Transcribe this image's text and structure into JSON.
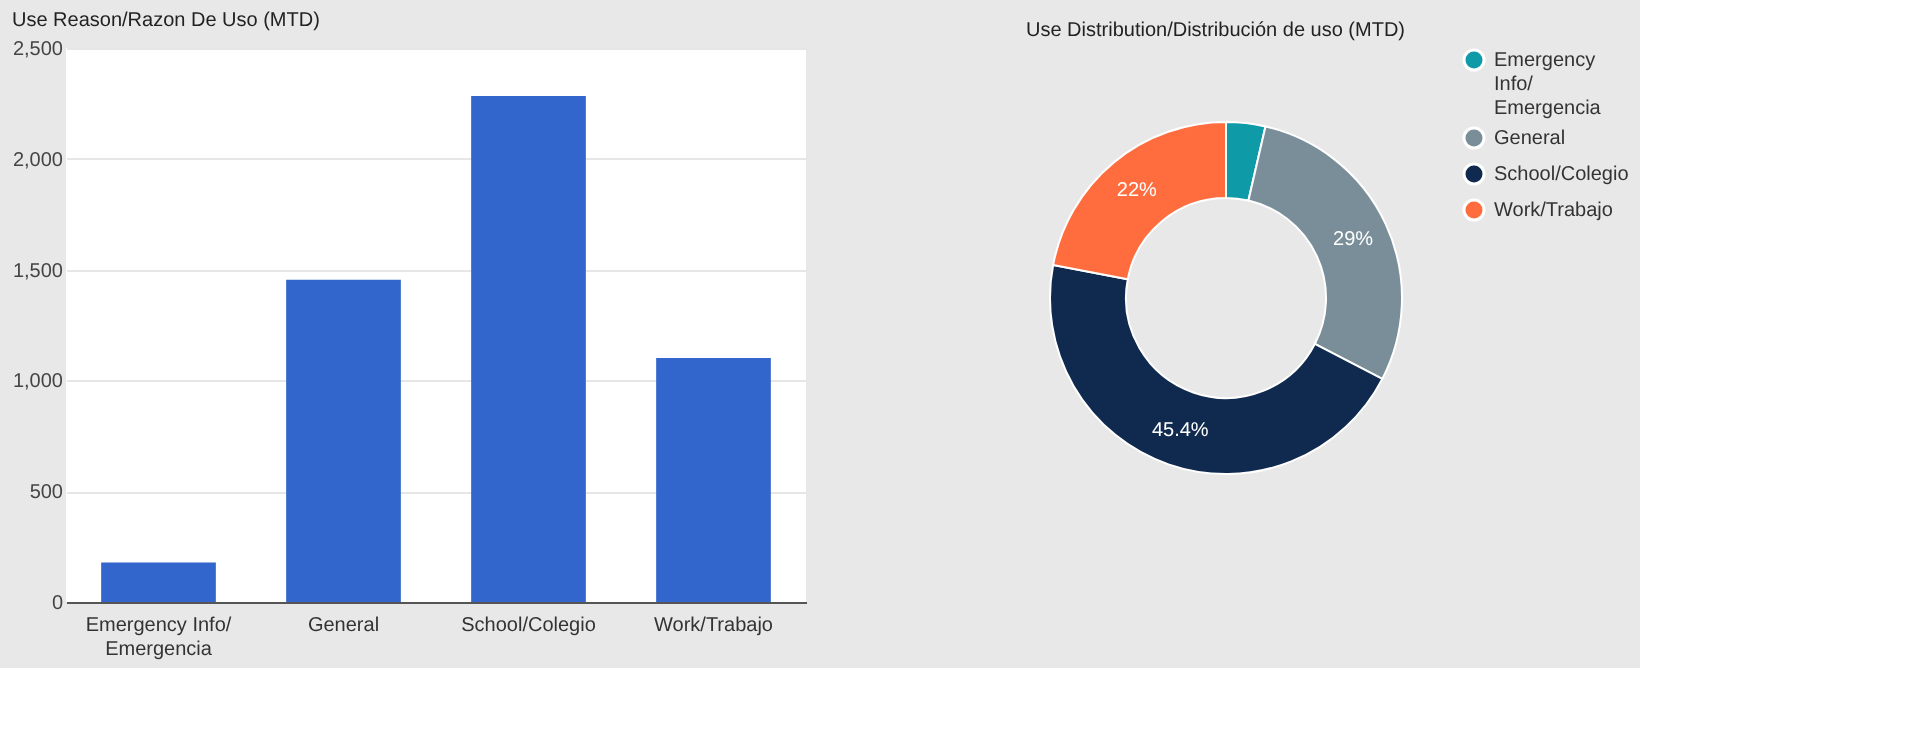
{
  "chart_data": [
    {
      "type": "bar",
      "title": "Use Reason/Razon De Uso (MTD)",
      "categories": [
        "Emergency Info/\nEmergencia",
        "General",
        "School/Colegio",
        "Work/Trabajo"
      ],
      "values": [
        178,
        1454,
        2283,
        1101
      ],
      "color": "#3366cc",
      "ylim": [
        0,
        2500
      ],
      "yticks": [
        0,
        500,
        {
          "value": 1000,
          "label": "1,000"
        },
        {
          "value": 1500,
          "label": "1,500"
        },
        {
          "value": 2000,
          "label": "2,000"
        },
        {
          "value": 2500,
          "label": "2,500"
        }
      ],
      "grid": "y"
    },
    {
      "type": "donut",
      "title": "Use Distribution/Distribución de uso (MTD)",
      "categories": [
        "Emergency\nInfo/\nEmergencia",
        "General",
        "School/Colegio",
        "Work/Trabajo"
      ],
      "values": [
        3.6,
        29,
        45.4,
        22
      ],
      "colors": [
        "#0e9aa7",
        "#7a8e99",
        "#0f2a4e",
        "#ff6d3f"
      ],
      "value_labels": [
        null,
        "29%",
        "45.4%",
        "22%"
      ],
      "legend": "right"
    }
  ]
}
